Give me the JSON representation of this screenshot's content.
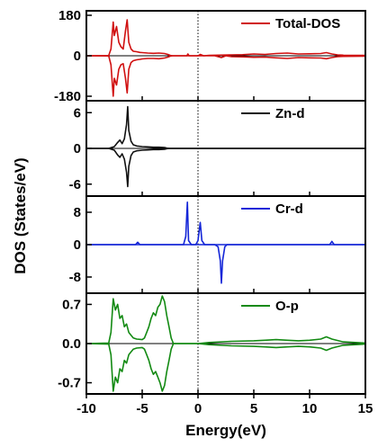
{
  "chart_data": {
    "type": "line",
    "xlabel": "Energy(eV)",
    "ylabel": "DOS (States/eV)",
    "xlim": [
      -10,
      15
    ],
    "x_ticks": [
      -10,
      -5,
      0,
      5,
      10,
      15
    ],
    "x_tick_labels": [
      "-10",
      "-5",
      "0",
      "5",
      "10",
      "15"
    ],
    "fermi_level": 0,
    "grid": false,
    "legend_placement": "top-right",
    "panels": [
      {
        "name": "Total-DOS",
        "color": "#d01010",
        "ylim": [
          -200,
          200
        ],
        "y_ticks": [
          180,
          0,
          -180
        ],
        "y_tick_labels": [
          "180",
          "0",
          "-180"
        ],
        "spin_up": [
          [
            -10,
            0
          ],
          [
            -8,
            1
          ],
          [
            -7.8,
            30
          ],
          [
            -7.6,
            150
          ],
          [
            -7.5,
            90
          ],
          [
            -7.3,
            130
          ],
          [
            -7.1,
            60
          ],
          [
            -6.9,
            40
          ],
          [
            -6.7,
            30
          ],
          [
            -6.5,
            110
          ],
          [
            -6.35,
            160
          ],
          [
            -6.2,
            60
          ],
          [
            -6,
            30
          ],
          [
            -5.8,
            20
          ],
          [
            -5.5,
            18
          ],
          [
            -5.2,
            15
          ],
          [
            -5,
            14
          ],
          [
            -4.5,
            12
          ],
          [
            -4,
            11
          ],
          [
            -3.5,
            12
          ],
          [
            -3,
            10
          ],
          [
            -2.7,
            6
          ],
          [
            -2.5,
            2
          ],
          [
            -2.3,
            0
          ],
          [
            -1,
            0
          ],
          [
            -0.9,
            8
          ],
          [
            -0.8,
            0
          ],
          [
            0,
            0
          ],
          [
            0.2,
            6
          ],
          [
            0.5,
            0
          ],
          [
            1,
            2
          ],
          [
            3,
            4
          ],
          [
            4,
            5
          ],
          [
            5,
            8
          ],
          [
            6,
            6
          ],
          [
            7,
            10
          ],
          [
            8,
            12
          ],
          [
            9,
            8
          ],
          [
            10,
            9
          ],
          [
            11,
            10
          ],
          [
            11.5,
            14
          ],
          [
            12,
            8
          ],
          [
            12.5,
            4
          ],
          [
            13,
            3
          ],
          [
            15,
            2
          ]
        ],
        "spin_down": [
          [
            -10,
            0
          ],
          [
            -8,
            -1
          ],
          [
            -7.8,
            -40
          ],
          [
            -7.6,
            -180
          ],
          [
            -7.5,
            -100
          ],
          [
            -7.3,
            -130
          ],
          [
            -7.1,
            -60
          ],
          [
            -6.9,
            -40
          ],
          [
            -6.7,
            -35
          ],
          [
            -6.5,
            -100
          ],
          [
            -6.35,
            -165
          ],
          [
            -6.2,
            -60
          ],
          [
            -6,
            -30
          ],
          [
            -5.8,
            -22
          ],
          [
            -5.5,
            -18
          ],
          [
            -5.2,
            -16
          ],
          [
            -5,
            -14
          ],
          [
            -4.5,
            -12
          ],
          [
            -4,
            -12
          ],
          [
            -3.5,
            -13
          ],
          [
            -3,
            -10
          ],
          [
            -2.7,
            -6
          ],
          [
            -2.5,
            -2
          ],
          [
            -2.3,
            0
          ],
          [
            1.5,
            0
          ],
          [
            2.1,
            -8
          ],
          [
            2.5,
            0
          ],
          [
            3,
            -4
          ],
          [
            4,
            -5
          ],
          [
            5,
            -7
          ],
          [
            6,
            -6
          ],
          [
            7,
            -9
          ],
          [
            8,
            -12
          ],
          [
            9,
            -8
          ],
          [
            10,
            -9
          ],
          [
            11,
            -10
          ],
          [
            11.5,
            -13
          ],
          [
            12,
            -8
          ],
          [
            12.5,
            -4
          ],
          [
            13,
            -3
          ],
          [
            15,
            -2
          ]
        ]
      },
      {
        "name": "Zn-d",
        "color": "#111111",
        "ylim": [
          -8,
          8
        ],
        "y_ticks": [
          6,
          0,
          -6
        ],
        "y_tick_labels": [
          "6",
          "0",
          "-6"
        ],
        "spin_up": [
          [
            -10,
            0
          ],
          [
            -8,
            0
          ],
          [
            -7.5,
            0.3
          ],
          [
            -7.2,
            1.0
          ],
          [
            -7,
            1.4
          ],
          [
            -6.8,
            0.8
          ],
          [
            -6.6,
            1.6
          ],
          [
            -6.4,
            4.0
          ],
          [
            -6.3,
            7.0
          ],
          [
            -6.2,
            3.0
          ],
          [
            -6.0,
            1.2
          ],
          [
            -5.8,
            0.6
          ],
          [
            -5.5,
            0.4
          ],
          [
            -5.0,
            0.3
          ],
          [
            -4.5,
            0.25
          ],
          [
            -4,
            0.2
          ],
          [
            -3.5,
            0.2
          ],
          [
            -3,
            0.15
          ],
          [
            -2.8,
            0.05
          ],
          [
            -2.5,
            0
          ],
          [
            15,
            0
          ]
        ],
        "spin_down": [
          [
            -10,
            0
          ],
          [
            -8,
            0
          ],
          [
            -7.5,
            -0.3
          ],
          [
            -7.2,
            -1.1
          ],
          [
            -7,
            -1.5
          ],
          [
            -6.8,
            -0.9
          ],
          [
            -6.6,
            -1.8
          ],
          [
            -6.4,
            -4.0
          ],
          [
            -6.3,
            -6.4
          ],
          [
            -6.2,
            -3.0
          ],
          [
            -6.0,
            -1.2
          ],
          [
            -5.8,
            -0.6
          ],
          [
            -5.5,
            -0.4
          ],
          [
            -5.0,
            -0.3
          ],
          [
            -4.5,
            -0.25
          ],
          [
            -4,
            -0.2
          ],
          [
            -3.5,
            -0.2
          ],
          [
            -3,
            -0.15
          ],
          [
            -2.8,
            -0.05
          ],
          [
            -2.5,
            0
          ],
          [
            15,
            0
          ]
        ]
      },
      {
        "name": "Cr-d",
        "color": "#1426d8",
        "ylim": [
          -12,
          12
        ],
        "y_ticks": [
          8,
          0,
          -8
        ],
        "y_tick_labels": [
          "8",
          "0",
          "-8"
        ],
        "spin_up": [
          [
            -10,
            0
          ],
          [
            -5.6,
            0
          ],
          [
            -5.4,
            0.6
          ],
          [
            -5.2,
            0
          ],
          [
            -1.3,
            0
          ],
          [
            -1.1,
            2
          ],
          [
            -0.95,
            10.5
          ],
          [
            -0.85,
            1
          ],
          [
            -0.6,
            0
          ],
          [
            -0.2,
            0
          ],
          [
            0,
            1
          ],
          [
            0.2,
            5.5
          ],
          [
            0.35,
            1
          ],
          [
            0.6,
            0
          ],
          [
            11.8,
            0
          ],
          [
            12,
            0.8
          ],
          [
            12.2,
            0
          ],
          [
            15,
            0
          ]
        ],
        "spin_down": [
          [
            -10,
            0
          ],
          [
            1.5,
            0
          ],
          [
            1.8,
            -0.5
          ],
          [
            2.0,
            -4
          ],
          [
            2.1,
            -9.5
          ],
          [
            2.2,
            -4
          ],
          [
            2.4,
            -0.5
          ],
          [
            2.6,
            0
          ],
          [
            15,
            0
          ]
        ]
      },
      {
        "name": "O-p",
        "color": "#138a13",
        "ylim": [
          -0.9,
          0.9
        ],
        "y_ticks": [
          0.7,
          0.0,
          -0.7
        ],
        "y_tick_labels": [
          "0.7",
          "0.0",
          "-0.7"
        ],
        "spin_up": [
          [
            -10,
            0
          ],
          [
            -8,
            0.01
          ],
          [
            -7.8,
            0.2
          ],
          [
            -7.6,
            0.8
          ],
          [
            -7.4,
            0.6
          ],
          [
            -7.2,
            0.7
          ],
          [
            -7.0,
            0.45
          ],
          [
            -6.8,
            0.5
          ],
          [
            -6.6,
            0.3
          ],
          [
            -6.4,
            0.35
          ],
          [
            -6.2,
            0.2
          ],
          [
            -6.0,
            0.15
          ],
          [
            -5.8,
            0.1
          ],
          [
            -5.5,
            0.08
          ],
          [
            -5.0,
            0.07
          ],
          [
            -4.8,
            0.1
          ],
          [
            -4.6,
            0.2
          ],
          [
            -4.4,
            0.3
          ],
          [
            -4.2,
            0.45
          ],
          [
            -4.0,
            0.55
          ],
          [
            -3.8,
            0.5
          ],
          [
            -3.6,
            0.65
          ],
          [
            -3.4,
            0.7
          ],
          [
            -3.2,
            0.85
          ],
          [
            -3.0,
            0.75
          ],
          [
            -2.8,
            0.5
          ],
          [
            -2.6,
            0.3
          ],
          [
            -2.4,
            0.1
          ],
          [
            -2.2,
            0
          ],
          [
            0,
            0
          ],
          [
            1,
            0.02
          ],
          [
            3,
            0.04
          ],
          [
            5,
            0.05
          ],
          [
            6,
            0.06
          ],
          [
            7,
            0.07
          ],
          [
            8,
            0.06
          ],
          [
            9,
            0.05
          ],
          [
            10,
            0.06
          ],
          [
            11,
            0.08
          ],
          [
            11.5,
            0.12
          ],
          [
            12,
            0.08
          ],
          [
            13,
            0.03
          ],
          [
            15,
            0.01
          ]
        ],
        "spin_down": [
          [
            -10,
            0
          ],
          [
            -8,
            -0.01
          ],
          [
            -7.8,
            -0.2
          ],
          [
            -7.6,
            -0.85
          ],
          [
            -7.4,
            -0.6
          ],
          [
            -7.2,
            -0.7
          ],
          [
            -7.0,
            -0.45
          ],
          [
            -6.8,
            -0.5
          ],
          [
            -6.6,
            -0.3
          ],
          [
            -6.4,
            -0.35
          ],
          [
            -6.2,
            -0.2
          ],
          [
            -6.0,
            -0.15
          ],
          [
            -5.8,
            -0.1
          ],
          [
            -5.5,
            -0.08
          ],
          [
            -5.0,
            -0.07
          ],
          [
            -4.8,
            -0.1
          ],
          [
            -4.6,
            -0.2
          ],
          [
            -4.4,
            -0.3
          ],
          [
            -4.2,
            -0.45
          ],
          [
            -4.0,
            -0.55
          ],
          [
            -3.8,
            -0.5
          ],
          [
            -3.6,
            -0.6
          ],
          [
            -3.4,
            -0.7
          ],
          [
            -3.2,
            -0.85
          ],
          [
            -3.0,
            -0.75
          ],
          [
            -2.8,
            -0.5
          ],
          [
            -2.6,
            -0.3
          ],
          [
            -2.4,
            -0.1
          ],
          [
            -2.2,
            0
          ],
          [
            0,
            0
          ],
          [
            1,
            -0.02
          ],
          [
            3,
            -0.04
          ],
          [
            5,
            -0.05
          ],
          [
            6,
            -0.06
          ],
          [
            7,
            -0.07
          ],
          [
            8,
            -0.06
          ],
          [
            9,
            -0.05
          ],
          [
            10,
            -0.06
          ],
          [
            11,
            -0.08
          ],
          [
            11.5,
            -0.12
          ],
          [
            12,
            -0.08
          ],
          [
            13,
            -0.03
          ],
          [
            15,
            -0.01
          ]
        ]
      }
    ]
  }
}
